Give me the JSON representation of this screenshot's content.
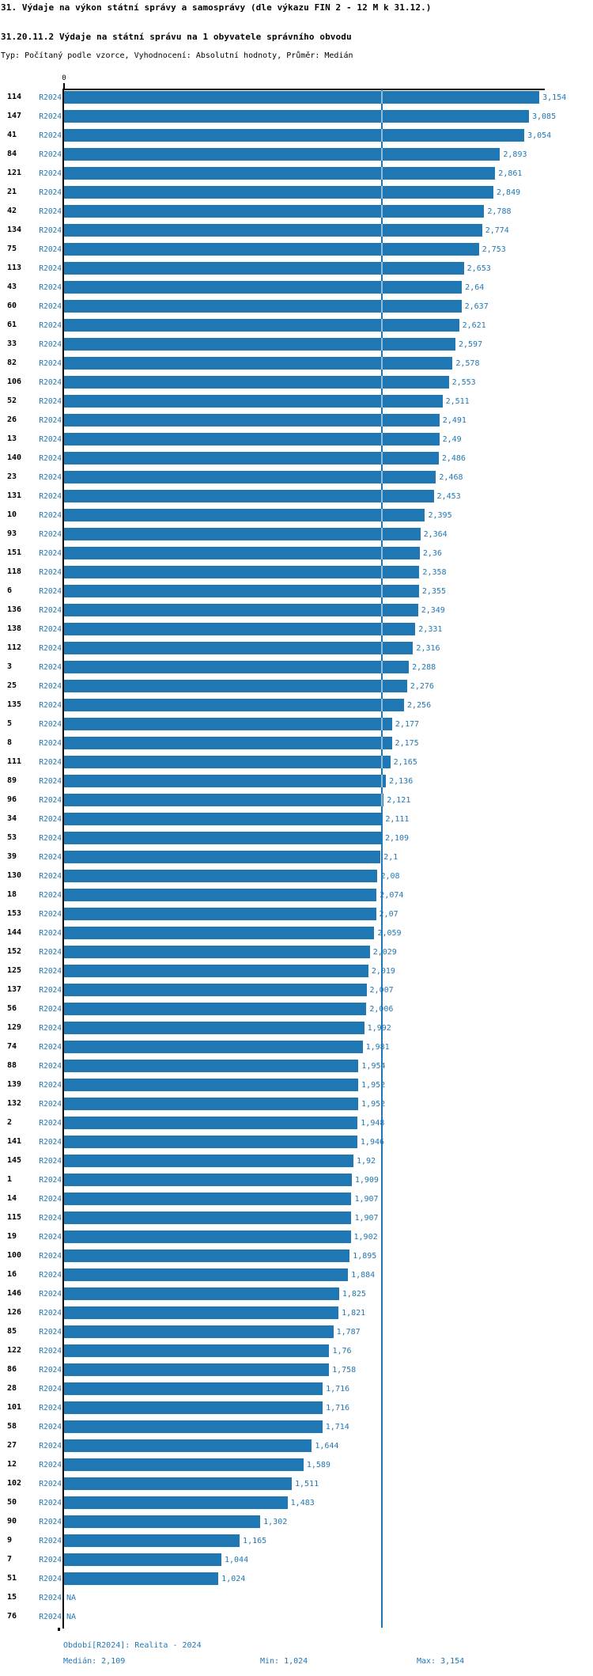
{
  "header": {
    "title": "31. Výdaje na výkon státní správy a samosprávy (dle výkazu FIN 2 - 12 M k 31.12.)",
    "subtitle": "31.20.11.2 Výdaje na státní správu na 1 obyvatele správního obvodu",
    "meta": "Typ: Počítaný podle vzorce, Vyhodnocení: Absolutní hodnoty, Průměr: Medián"
  },
  "colors": {
    "accent_blue": "#1f77b4",
    "bar": "#1f77b4",
    "median_line": "#1f77b4",
    "text_black": "#000000"
  },
  "chart_data": {
    "type": "bar",
    "orientation": "horizontal",
    "title": "31.20.11.2 Výdaje na státní správu na 1 obyvatele správního obvodu",
    "xlabel": "",
    "ylabel": "",
    "x_axis": {
      "zero_tick_label": "0",
      "xlim": [
        0,
        3.2
      ],
      "grid": false
    },
    "legend_position": "none",
    "median_value": 2.109,
    "categories": [
      "114",
      "147",
      "41",
      "84",
      "121",
      "21",
      "42",
      "134",
      "75",
      "113",
      "43",
      "60",
      "61",
      "33",
      "82",
      "106",
      "52",
      "26",
      "13",
      "140",
      "23",
      "131",
      "10",
      "93",
      "151",
      "118",
      "6",
      "136",
      "138",
      "112",
      "3",
      "25",
      "135",
      "5",
      "8",
      "111",
      "89",
      "96",
      "34",
      "53",
      "39",
      "130",
      "18",
      "153",
      "144",
      "152",
      "125",
      "137",
      "56",
      "129",
      "74",
      "88",
      "139",
      "132",
      "2",
      "141",
      "145",
      "1",
      "14",
      "115",
      "19",
      "100",
      "16",
      "146",
      "126",
      "85",
      "122",
      "86",
      "28",
      "101",
      "58",
      "27",
      "12",
      "102",
      "50",
      "90",
      "9",
      "7",
      "51",
      "15",
      "76"
    ],
    "series": [
      {
        "name": "R2024",
        "values": [
          3.154,
          3.085,
          3.054,
          2.893,
          2.861,
          2.849,
          2.788,
          2.774,
          2.753,
          2.653,
          2.64,
          2.637,
          2.621,
          2.597,
          2.578,
          2.553,
          2.511,
          2.491,
          2.49,
          2.486,
          2.468,
          2.453,
          2.395,
          2.364,
          2.36,
          2.358,
          2.355,
          2.349,
          2.331,
          2.316,
          2.288,
          2.276,
          2.256,
          2.177,
          2.175,
          2.165,
          2.136,
          2.121,
          2.111,
          2.109,
          2.1,
          2.08,
          2.074,
          2.07,
          2.059,
          2.029,
          2.019,
          2.007,
          2.006,
          1.992,
          1.981,
          1.954,
          1.952,
          1.952,
          1.948,
          1.946,
          1.92,
          1.909,
          1.907,
          1.907,
          1.902,
          1.895,
          1.884,
          1.825,
          1.821,
          1.787,
          1.76,
          1.758,
          1.716,
          1.716,
          1.714,
          1.644,
          1.589,
          1.511,
          1.483,
          1.302,
          1.165,
          1.044,
          1.024,
          null,
          null
        ],
        "labels": [
          "3,154",
          "3,085",
          "3,054",
          "2,893",
          "2,861",
          "2,849",
          "2,788",
          "2,774",
          "2,753",
          "2,653",
          "2,64",
          "2,637",
          "2,621",
          "2,597",
          "2,578",
          "2,553",
          "2,511",
          "2,491",
          "2,49",
          "2,486",
          "2,468",
          "2,453",
          "2,395",
          "2,364",
          "2,36",
          "2,358",
          "2,355",
          "2,349",
          "2,331",
          "2,316",
          "2,288",
          "2,276",
          "2,256",
          "2,177",
          "2,175",
          "2,165",
          "2,136",
          "2,121",
          "2,111",
          "2,109",
          "2,1",
          "2,08",
          "2,074",
          "2,07",
          "2,059",
          "2,029",
          "2,019",
          "2,007",
          "2,006",
          "1,992",
          "1,981",
          "1,954",
          "1,952",
          "1,952",
          "1,948",
          "1,946",
          "1,92",
          "1,909",
          "1,907",
          "1,907",
          "1,902",
          "1,895",
          "1,884",
          "1,825",
          "1,821",
          "1,787",
          "1,76",
          "1,758",
          "1,716",
          "1,716",
          "1,714",
          "1,644",
          "1,589",
          "1,511",
          "1,483",
          "1,302",
          "1,165",
          "1,044",
          "1,024",
          "NA",
          "NA"
        ]
      }
    ],
    "na_text": "NA"
  },
  "footer": {
    "period_line": "Období[R2024]: Realita - 2024",
    "median_label": "Medián: 2,109",
    "min_label": "Min: 1,024",
    "max_label": "Max: 3,154"
  }
}
